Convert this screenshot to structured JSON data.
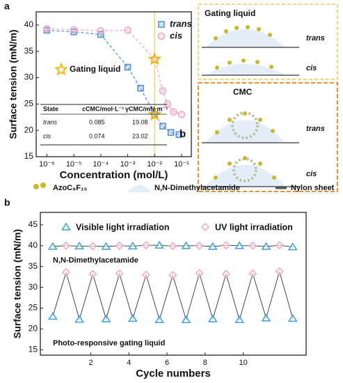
{
  "panel_labels": [
    "a",
    "b"
  ],
  "schematic": {
    "gating_title": "Gating liquid",
    "cmc_title": "CMC",
    "states": [
      "trans",
      "cis"
    ]
  },
  "bottom_legend": [
    "AzoC₈F₁₅",
    "N,N-Dimethylacetamide",
    "Nylon sheet"
  ],
  "chart_data": [
    {
      "type": "scatter",
      "xlabel": "Concentration (mol/L)",
      "ylabel": "Surface tension  (mN/m)",
      "xscale": "log",
      "xlim": [
        4e-07,
        0.23
      ],
      "ylim": [
        15,
        42.5
      ],
      "xticks": [
        {
          "value": 1e-06,
          "label": "10⁻⁶"
        },
        {
          "value": 1e-05,
          "label": "10⁻⁵"
        },
        {
          "value": 0.0001,
          "label": "10⁻⁴"
        },
        {
          "value": 0.001,
          "label": "10⁻³"
        },
        {
          "value": 0.01,
          "label": "10⁻²"
        },
        {
          "value": 0.1,
          "label": "10⁻¹"
        }
      ],
      "yticks": [
        15,
        20,
        25,
        30,
        35,
        40
      ],
      "series": [
        {
          "name": "trans",
          "color": "#4f8fd6",
          "marker": "square",
          "x": [
            1e-06,
            1e-05,
            0.0001,
            0.001,
            0.003,
            0.01,
            0.02,
            0.04,
            0.08
          ],
          "values": [
            39.0,
            38.7,
            38.2,
            32.0,
            28.0,
            23.0,
            20.8,
            19.6,
            19.2
          ]
        },
        {
          "name": "cis",
          "color": "#f2a5bd",
          "marker": "circle",
          "x": [
            1e-06,
            1e-05,
            0.0001,
            0.001,
            0.01,
            0.02,
            0.03,
            0.05,
            0.1
          ],
          "values": [
            39.3,
            39.1,
            38.9,
            39.0,
            33.5,
            27.5,
            25.0,
            23.5,
            23.0
          ]
        }
      ],
      "vline": {
        "x": 0.01,
        "color": "#f7d774"
      },
      "highlight": {
        "label": "Gating liquid",
        "color": "#f5b400",
        "x": [
          0.01,
          0.01
        ],
        "values": [
          23.0,
          33.5
        ]
      },
      "table": {
        "header": [
          "State",
          "cCMC/mol·L⁻¹",
          "γCMC/mN·m⁻¹"
        ],
        "rows": [
          [
            "trans",
            "0.085",
            "19.08"
          ],
          [
            "cis",
            "0.074",
            "23.02"
          ]
        ]
      },
      "annotation": "b"
    },
    {
      "type": "line",
      "xlabel": "Cycle numbers",
      "ylabel": "Surface tension  (mN/m)",
      "xlim": [
        -0.65,
        13.3
      ],
      "ylim": [
        13.7,
        48
      ],
      "xticks": [
        2,
        4,
        6,
        8,
        10
      ],
      "yticks": [
        15,
        20,
        25,
        30,
        35,
        40,
        45
      ],
      "legend": [
        {
          "name": "Visible light irradiation",
          "color": "#3ca0dc",
          "marker": "triangle"
        },
        {
          "name": "UV light irradiation",
          "color": "#f4a6c0",
          "marker": "diamond"
        }
      ],
      "groups": [
        {
          "label": "N,N-Dimethylacetamide",
          "series": [
            {
              "x": [
                0,
                1.4,
                2.8,
                4.2,
                5.6,
                7.0,
                8.4,
                9.8,
                11.2,
                12.6
              ],
              "values": [
                39.8,
                39.9,
                39.8,
                39.9,
                40.1,
                40.0,
                39.8,
                40.0,
                39.8,
                39.7
              ]
            },
            {
              "x": [
                0.7,
                2.1,
                3.5,
                4.9,
                6.3,
                7.7,
                9.1,
                10.5,
                11.9
              ],
              "values": [
                40.0,
                39.9,
                40.0,
                40.1,
                39.9,
                40.0,
                40.1,
                40.0,
                40.1
              ]
            }
          ]
        },
        {
          "label": "Photo-responsive gating liquid",
          "series": [
            {
              "x": [
                0,
                1.4,
                2.8,
                4.2,
                5.6,
                7.0,
                8.4,
                9.8,
                11.2,
                12.6
              ],
              "values": [
                23.0,
                22.3,
                22.4,
                22.5,
                22.2,
                22.2,
                22.4,
                22.2,
                22.6,
                22.5
              ]
            },
            {
              "x": [
                0.7,
                2.1,
                3.5,
                4.9,
                6.3,
                7.7,
                9.1,
                10.5,
                11.9
              ],
              "values": [
                33.6,
                33.2,
                33.3,
                33.0,
                32.9,
                33.4,
                33.2,
                33.3,
                33.8
              ]
            }
          ]
        }
      ]
    }
  ]
}
